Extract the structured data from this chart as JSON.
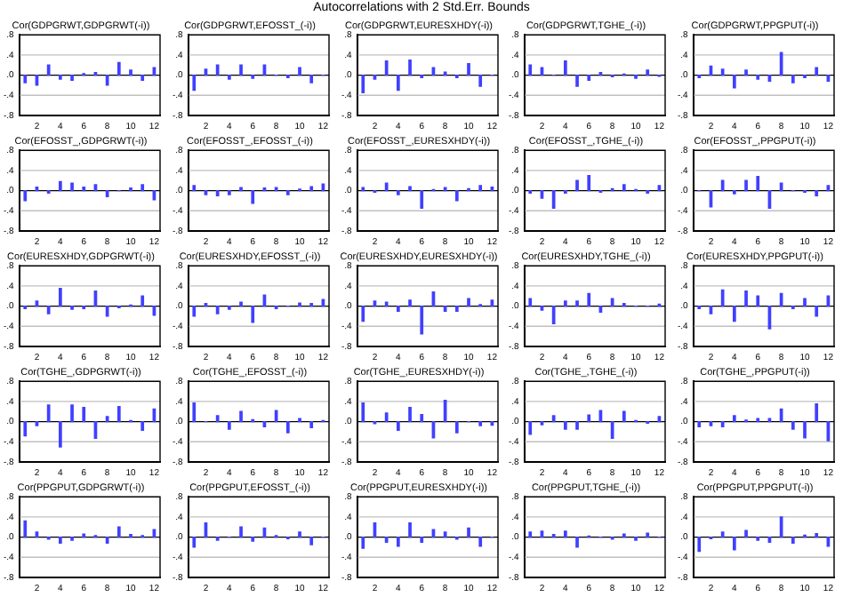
{
  "chart_data": [
    {
      "type": "bar",
      "title": "Cor(GDPGRWT,GDPGRWT(-i))",
      "annotations": [
        "Autocorrelations with 2 Std.Err. Bounds"
      ],
      "x": [
        1,
        2,
        3,
        4,
        5,
        6,
        7,
        8,
        9,
        10,
        11,
        12
      ],
      "values": [
        -0.15,
        -0.2,
        0.2,
        -0.08,
        -0.1,
        0.03,
        0.05,
        -0.2,
        0.25,
        0.1,
        -0.1,
        0.15
      ],
      "color": "#4040ff",
      "xlim": [
        0.5,
        12.5
      ],
      "xticks": [
        2,
        4,
        6,
        8,
        10,
        12
      ],
      "ylim": [
        -0.8,
        0.8
      ],
      "yticks": [
        {
          "value": -0.8,
          "label": "-.8"
        },
        {
          "value": -0.4,
          "label": "-.4"
        },
        {
          "value": 0,
          "label": ".0"
        },
        {
          "value": 0.4,
          "label": ".4"
        },
        {
          "value": 0.8,
          "label": ".8"
        }
      ],
      "ref_lines": [
        {
          "axis": "y",
          "value": 0,
          "color": "#000000"
        },
        {
          "axis": "y",
          "value": 0.4,
          "color": "#c0c0c0"
        },
        {
          "axis": "y",
          "value": -0.4,
          "color": "#c0c0c0"
        }
      ]
    },
    {
      "type": "bar",
      "title": "Cor(GDPGRWT,EFOSST_(-i))",
      "x": [
        1,
        2,
        3,
        4,
        5,
        6,
        7,
        8,
        9,
        10,
        11,
        12
      ],
      "values": [
        -0.3,
        0.12,
        0.2,
        -0.08,
        0.2,
        -0.06,
        0.2,
        0.0,
        -0.05,
        0.15,
        -0.15,
        0.0
      ],
      "color": "#4040ff",
      "xlim": [
        0.5,
        12.5
      ],
      "xticks": [
        2,
        4,
        6,
        8,
        10,
        12
      ],
      "ylim": [
        -0.8,
        0.8
      ],
      "yticks": [
        {
          "value": -0.8,
          "label": "-.8"
        },
        {
          "value": -0.4,
          "label": "-.4"
        },
        {
          "value": 0,
          "label": ".0"
        },
        {
          "value": 0.4,
          "label": ".4"
        },
        {
          "value": 0.8,
          "label": ".8"
        }
      ],
      "ref_lines": [
        {
          "axis": "y",
          "value": 0,
          "color": "#000000"
        },
        {
          "axis": "y",
          "value": 0.4,
          "color": "#c0c0c0"
        },
        {
          "axis": "y",
          "value": -0.4,
          "color": "#c0c0c0"
        }
      ]
    },
    {
      "type": "bar",
      "title": "Cor(GDPGRWT,EURESXHDY(-i))",
      "x": [
        1,
        2,
        3,
        4,
        5,
        6,
        7,
        8,
        9,
        10,
        11,
        12
      ],
      "values": [
        -0.35,
        -0.08,
        0.28,
        -0.3,
        0.3,
        -0.05,
        0.15,
        0.06,
        -0.05,
        0.23,
        -0.22,
        0.0
      ],
      "color": "#4040ff",
      "xlim": [
        0.5,
        12.5
      ],
      "xticks": [
        2,
        4,
        6,
        8,
        10,
        12
      ],
      "ylim": [
        -0.8,
        0.8
      ],
      "yticks": [
        {
          "value": -0.8,
          "label": "-.8"
        },
        {
          "value": -0.4,
          "label": "-.4"
        },
        {
          "value": 0,
          "label": ".0"
        },
        {
          "value": 0.4,
          "label": ".4"
        },
        {
          "value": 0.8,
          "label": ".8"
        }
      ],
      "ref_lines": [
        {
          "axis": "y",
          "value": 0,
          "color": "#000000"
        },
        {
          "axis": "y",
          "value": 0.4,
          "color": "#c0c0c0"
        },
        {
          "axis": "y",
          "value": -0.4,
          "color": "#c0c0c0"
        }
      ]
    },
    {
      "type": "bar",
      "title": "Cor(GDPGRWT,TGHE_(-i))",
      "x": [
        1,
        2,
        3,
        4,
        5,
        6,
        7,
        8,
        9,
        10,
        11,
        12
      ],
      "values": [
        0.2,
        0.15,
        0.0,
        0.28,
        -0.22,
        -0.1,
        0.05,
        -0.03,
        0.02,
        -0.06,
        0.1,
        -0.02
      ],
      "color": "#4040ff",
      "xlim": [
        0.5,
        12.5
      ],
      "xticks": [
        2,
        4,
        6,
        8,
        10,
        12
      ],
      "ylim": [
        -0.8,
        0.8
      ],
      "yticks": [
        {
          "value": -0.8,
          "label": "-.8"
        },
        {
          "value": -0.4,
          "label": "-.4"
        },
        {
          "value": 0,
          "label": ".0"
        },
        {
          "value": 0.4,
          "label": ".4"
        },
        {
          "value": 0.8,
          "label": ".8"
        }
      ],
      "ref_lines": [
        {
          "axis": "y",
          "value": 0,
          "color": "#000000"
        },
        {
          "axis": "y",
          "value": 0.4,
          "color": "#c0c0c0"
        },
        {
          "axis": "y",
          "value": -0.4,
          "color": "#c0c0c0"
        }
      ]
    },
    {
      "type": "bar",
      "title": "Cor(GDPGRWT,PPGPUT(-i))",
      "x": [
        1,
        2,
        3,
        4,
        5,
        6,
        7,
        8,
        9,
        10,
        11,
        12
      ],
      "values": [
        -0.05,
        0.18,
        0.12,
        -0.25,
        0.1,
        -0.08,
        -0.12,
        0.45,
        -0.15,
        -0.05,
        0.15,
        -0.12
      ],
      "color": "#4040ff",
      "xlim": [
        0.5,
        12.5
      ],
      "xticks": [
        2,
        4,
        6,
        8,
        10,
        12
      ],
      "ylim": [
        -0.8,
        0.8
      ],
      "yticks": [
        {
          "value": -0.8,
          "label": "-.8"
        },
        {
          "value": -0.4,
          "label": "-.4"
        },
        {
          "value": 0,
          "label": ".0"
        },
        {
          "value": 0.4,
          "label": ".4"
        },
        {
          "value": 0.8,
          "label": ".8"
        }
      ],
      "ref_lines": [
        {
          "axis": "y",
          "value": 0,
          "color": "#000000"
        },
        {
          "axis": "y",
          "value": 0.4,
          "color": "#c0c0c0"
        },
        {
          "axis": "y",
          "value": -0.4,
          "color": "#c0c0c0"
        }
      ]
    },
    {
      "type": "bar",
      "title": "Cor(EFOSST_,GDPGRWT(-i))",
      "x": [
        1,
        2,
        3,
        4,
        5,
        6,
        7,
        8,
        9,
        10,
        11,
        12
      ],
      "values": [
        -0.2,
        0.07,
        -0.05,
        0.18,
        0.15,
        0.07,
        0.12,
        -0.12,
        0.0,
        0.05,
        0.12,
        -0.18
      ],
      "color": "#4040ff",
      "xlim": [
        0.5,
        12.5
      ],
      "xticks": [
        2,
        4,
        6,
        8,
        10,
        12
      ],
      "ylim": [
        -0.8,
        0.8
      ],
      "yticks": [
        {
          "value": -0.8,
          "label": "-.8"
        },
        {
          "value": -0.4,
          "label": "-.4"
        },
        {
          "value": 0,
          "label": ".0"
        },
        {
          "value": 0.4,
          "label": ".4"
        },
        {
          "value": 0.8,
          "label": ".8"
        }
      ],
      "ref_lines": [
        {
          "axis": "y",
          "value": 0,
          "color": "#000000"
        },
        {
          "axis": "y",
          "value": 0.4,
          "color": "#c0c0c0"
        },
        {
          "axis": "y",
          "value": -0.4,
          "color": "#c0c0c0"
        }
      ]
    },
    {
      "type": "bar",
      "title": "Cor(EFOSST_,EFOSST_(-i))",
      "x": [
        1,
        2,
        3,
        4,
        5,
        6,
        7,
        8,
        9,
        10,
        11,
        12
      ],
      "values": [
        0.1,
        -0.08,
        -0.1,
        -0.08,
        0.06,
        -0.25,
        0.05,
        0.06,
        -0.08,
        0.03,
        0.08,
        0.13
      ],
      "color": "#4040ff",
      "xlim": [
        0.5,
        12.5
      ],
      "xticks": [
        2,
        4,
        6,
        8,
        10,
        12
      ],
      "ylim": [
        -0.8,
        0.8
      ],
      "yticks": [
        {
          "value": -0.8,
          "label": "-.8"
        },
        {
          "value": -0.4,
          "label": "-.4"
        },
        {
          "value": 0,
          "label": ".0"
        },
        {
          "value": 0.4,
          "label": ".4"
        },
        {
          "value": 0.8,
          "label": ".8"
        }
      ],
      "ref_lines": [
        {
          "axis": "y",
          "value": 0,
          "color": "#000000"
        },
        {
          "axis": "y",
          "value": 0.4,
          "color": "#c0c0c0"
        },
        {
          "axis": "y",
          "value": -0.4,
          "color": "#c0c0c0"
        }
      ]
    },
    {
      "type": "bar",
      "title": "Cor(EFOSST_,EURESXHDY(-i))",
      "x": [
        1,
        2,
        3,
        4,
        5,
        6,
        7,
        8,
        9,
        10,
        11,
        12
      ],
      "values": [
        0.06,
        -0.03,
        0.15,
        -0.08,
        0.08,
        -0.35,
        0.02,
        0.06,
        -0.2,
        0.04,
        0.1,
        0.07
      ],
      "color": "#4040ff",
      "xlim": [
        0.5,
        12.5
      ],
      "xticks": [
        2,
        4,
        6,
        8,
        10,
        12
      ],
      "ylim": [
        -0.8,
        0.8
      ],
      "yticks": [
        {
          "value": -0.8,
          "label": "-.8"
        },
        {
          "value": -0.4,
          "label": "-.4"
        },
        {
          "value": 0,
          "label": ".0"
        },
        {
          "value": 0.4,
          "label": ".4"
        },
        {
          "value": 0.8,
          "label": ".8"
        }
      ],
      "ref_lines": [
        {
          "axis": "y",
          "value": 0,
          "color": "#000000"
        },
        {
          "axis": "y",
          "value": 0.4,
          "color": "#c0c0c0"
        },
        {
          "axis": "y",
          "value": -0.4,
          "color": "#c0c0c0"
        }
      ]
    },
    {
      "type": "bar",
      "title": "Cor(EFOSST_,TGHE_(-i))",
      "x": [
        1,
        2,
        3,
        4,
        5,
        6,
        7,
        8,
        9,
        10,
        11,
        12
      ],
      "values": [
        -0.05,
        -0.15,
        -0.35,
        -0.05,
        0.2,
        0.3,
        -0.03,
        0.04,
        0.12,
        0.02,
        -0.05,
        0.1
      ],
      "color": "#4040ff",
      "xlim": [
        0.5,
        12.5
      ],
      "xticks": [
        2,
        4,
        6,
        8,
        10,
        12
      ],
      "ylim": [
        -0.8,
        0.8
      ],
      "yticks": [
        {
          "value": -0.8,
          "label": "-.8"
        },
        {
          "value": -0.4,
          "label": "-.4"
        },
        {
          "value": 0,
          "label": ".0"
        },
        {
          "value": 0.4,
          "label": ".4"
        },
        {
          "value": 0.8,
          "label": ".8"
        }
      ],
      "ref_lines": [
        {
          "axis": "y",
          "value": 0,
          "color": "#000000"
        },
        {
          "axis": "y",
          "value": 0.4,
          "color": "#c0c0c0"
        },
        {
          "axis": "y",
          "value": -0.4,
          "color": "#c0c0c0"
        }
      ]
    },
    {
      "type": "bar",
      "title": "Cor(EFOSST_,PPGPUT(-i))",
      "x": [
        1,
        2,
        3,
        4,
        5,
        6,
        7,
        8,
        9,
        10,
        11,
        12
      ],
      "values": [
        0.0,
        -0.32,
        0.2,
        -0.06,
        0.2,
        0.28,
        -0.35,
        0.15,
        0.0,
        -0.03,
        -0.1,
        0.1
      ],
      "color": "#4040ff",
      "xlim": [
        0.5,
        12.5
      ],
      "xticks": [
        2,
        4,
        6,
        8,
        10,
        12
      ],
      "ylim": [
        -0.8,
        0.8
      ],
      "yticks": [
        {
          "value": -0.8,
          "label": "-.8"
        },
        {
          "value": -0.4,
          "label": "-.4"
        },
        {
          "value": 0,
          "label": ".0"
        },
        {
          "value": 0.4,
          "label": ".4"
        },
        {
          "value": 0.8,
          "label": ".8"
        }
      ],
      "ref_lines": [
        {
          "axis": "y",
          "value": 0,
          "color": "#000000"
        },
        {
          "axis": "y",
          "value": 0.4,
          "color": "#c0c0c0"
        },
        {
          "axis": "y",
          "value": -0.4,
          "color": "#c0c0c0"
        }
      ]
    },
    {
      "type": "bar",
      "title": "Cor(EURESXHDY,GDPGRWT(-i))",
      "x": [
        1,
        2,
        3,
        4,
        5,
        6,
        7,
        8,
        9,
        10,
        11,
        12
      ],
      "values": [
        -0.05,
        0.1,
        -0.15,
        0.35,
        -0.06,
        -0.05,
        0.3,
        -0.2,
        -0.03,
        0.02,
        0.2,
        -0.18
      ],
      "color": "#4040ff",
      "xlim": [
        0.5,
        12.5
      ],
      "xticks": [
        2,
        4,
        6,
        8,
        10,
        12
      ],
      "ylim": [
        -0.8,
        0.8
      ],
      "yticks": [
        {
          "value": -0.8,
          "label": "-.8"
        },
        {
          "value": -0.4,
          "label": "-.4"
        },
        {
          "value": 0,
          "label": ".0"
        },
        {
          "value": 0.4,
          "label": ".4"
        },
        {
          "value": 0.8,
          "label": ".8"
        }
      ],
      "ref_lines": [
        {
          "axis": "y",
          "value": 0,
          "color": "#000000"
        },
        {
          "axis": "y",
          "value": 0.4,
          "color": "#c0c0c0"
        },
        {
          "axis": "y",
          "value": -0.4,
          "color": "#c0c0c0"
        }
      ]
    },
    {
      "type": "bar",
      "title": "Cor(EURESXHDY,EFOSST_(-i))",
      "x": [
        1,
        2,
        3,
        4,
        5,
        6,
        7,
        8,
        9,
        10,
        11,
        12
      ],
      "values": [
        -0.2,
        0.05,
        -0.15,
        -0.06,
        0.08,
        -0.32,
        0.22,
        -0.05,
        0.0,
        0.06,
        0.05,
        0.13
      ],
      "color": "#4040ff",
      "xlim": [
        0.5,
        12.5
      ],
      "xticks": [
        2,
        4,
        6,
        8,
        10,
        12
      ],
      "ylim": [
        -0.8,
        0.8
      ],
      "yticks": [
        {
          "value": -0.8,
          "label": "-.8"
        },
        {
          "value": -0.4,
          "label": "-.4"
        },
        {
          "value": 0,
          "label": ".0"
        },
        {
          "value": 0.4,
          "label": ".4"
        },
        {
          "value": 0.8,
          "label": ".8"
        }
      ],
      "ref_lines": [
        {
          "axis": "y",
          "value": 0,
          "color": "#000000"
        },
        {
          "axis": "y",
          "value": 0.4,
          "color": "#c0c0c0"
        },
        {
          "axis": "y",
          "value": -0.4,
          "color": "#c0c0c0"
        }
      ]
    },
    {
      "type": "bar",
      "title": "Cor(EURESXHDY,EURESXHDY(-i))",
      "x": [
        1,
        2,
        3,
        4,
        5,
        6,
        7,
        8,
        9,
        10,
        11,
        12
      ],
      "values": [
        -0.3,
        0.1,
        0.08,
        -0.1,
        0.12,
        -0.55,
        0.28,
        -0.1,
        -0.1,
        0.15,
        0.03,
        0.12
      ],
      "color": "#4040ff",
      "xlim": [
        0.5,
        12.5
      ],
      "xticks": [
        2,
        4,
        6,
        8,
        10,
        12
      ],
      "ylim": [
        -0.8,
        0.8
      ],
      "yticks": [
        {
          "value": -0.8,
          "label": "-.8"
        },
        {
          "value": -0.4,
          "label": "-.4"
        },
        {
          "value": 0,
          "label": ".0"
        },
        {
          "value": 0.4,
          "label": ".4"
        },
        {
          "value": 0.8,
          "label": ".8"
        }
      ],
      "ref_lines": [
        {
          "axis": "y",
          "value": 0,
          "color": "#000000"
        },
        {
          "axis": "y",
          "value": 0.4,
          "color": "#c0c0c0"
        },
        {
          "axis": "y",
          "value": -0.4,
          "color": "#c0c0c0"
        }
      ]
    },
    {
      "type": "bar",
      "title": "Cor(EURESXHDY,TGHE_(-i))",
      "x": [
        1,
        2,
        3,
        4,
        5,
        6,
        7,
        8,
        9,
        10,
        11,
        12
      ],
      "values": [
        0.15,
        -0.08,
        -0.35,
        0.1,
        0.1,
        0.25,
        -0.12,
        0.15,
        0.05,
        0.0,
        0.0,
        0.04
      ],
      "color": "#4040ff",
      "xlim": [
        0.5,
        12.5
      ],
      "xticks": [
        2,
        4,
        6,
        8,
        10,
        12
      ],
      "ylim": [
        -0.8,
        0.8
      ],
      "yticks": [
        {
          "value": -0.8,
          "label": "-.8"
        },
        {
          "value": -0.4,
          "label": "-.4"
        },
        {
          "value": 0,
          "label": ".0"
        },
        {
          "value": 0.4,
          "label": ".4"
        },
        {
          "value": 0.8,
          "label": ".8"
        }
      ],
      "ref_lines": [
        {
          "axis": "y",
          "value": 0,
          "color": "#000000"
        },
        {
          "axis": "y",
          "value": 0.4,
          "color": "#c0c0c0"
        },
        {
          "axis": "y",
          "value": -0.4,
          "color": "#c0c0c0"
        }
      ]
    },
    {
      "type": "bar",
      "title": "Cor(EURESXHDY,PPGPUT(-i))",
      "x": [
        1,
        2,
        3,
        4,
        5,
        6,
        7,
        8,
        9,
        10,
        11,
        12
      ],
      "values": [
        -0.05,
        -0.15,
        0.32,
        -0.3,
        0.3,
        0.2,
        -0.45,
        0.25,
        -0.05,
        0.15,
        -0.2,
        0.2
      ],
      "color": "#4040ff",
      "xlim": [
        0.5,
        12.5
      ],
      "xticks": [
        2,
        4,
        6,
        8,
        10,
        12
      ],
      "ylim": [
        -0.8,
        0.8
      ],
      "yticks": [
        {
          "value": -0.8,
          "label": "-.8"
        },
        {
          "value": -0.4,
          "label": "-.4"
        },
        {
          "value": 0,
          "label": ".0"
        },
        {
          "value": 0.4,
          "label": ".4"
        },
        {
          "value": 0.8,
          "label": ".8"
        }
      ],
      "ref_lines": [
        {
          "axis": "y",
          "value": 0,
          "color": "#000000"
        },
        {
          "axis": "y",
          "value": 0.4,
          "color": "#c0c0c0"
        },
        {
          "axis": "y",
          "value": -0.4,
          "color": "#c0c0c0"
        }
      ]
    },
    {
      "type": "bar",
      "title": "Cor(TGHE_,GDPGRWT(-i))",
      "x": [
        1,
        2,
        3,
        4,
        5,
        6,
        7,
        8,
        9,
        10,
        11,
        12
      ],
      "values": [
        -0.28,
        -0.08,
        0.33,
        -0.5,
        0.33,
        0.28,
        -0.33,
        0.1,
        0.3,
        0.02,
        -0.17,
        0.25
      ],
      "color": "#4040ff",
      "xlim": [
        0.5,
        12.5
      ],
      "xticks": [
        2,
        4,
        6,
        8,
        10,
        12
      ],
      "ylim": [
        -0.8,
        0.8
      ],
      "yticks": [
        {
          "value": -0.8,
          "label": "-.8"
        },
        {
          "value": -0.4,
          "label": "-.4"
        },
        {
          "value": 0,
          "label": ".0"
        },
        {
          "value": 0.4,
          "label": ".4"
        },
        {
          "value": 0.8,
          "label": ".8"
        }
      ],
      "ref_lines": [
        {
          "axis": "y",
          "value": 0,
          "color": "#000000"
        },
        {
          "axis": "y",
          "value": 0.4,
          "color": "#c0c0c0"
        },
        {
          "axis": "y",
          "value": -0.4,
          "color": "#c0c0c0"
        }
      ]
    },
    {
      "type": "bar",
      "title": "Cor(TGHE_,EFOSST_(-i))",
      "x": [
        1,
        2,
        3,
        4,
        5,
        6,
        7,
        8,
        9,
        10,
        11,
        12
      ],
      "values": [
        0.37,
        0.0,
        0.12,
        -0.15,
        0.2,
        0.04,
        -0.1,
        0.22,
        -0.22,
        0.06,
        -0.12,
        0.02
      ],
      "color": "#4040ff",
      "xlim": [
        0.5,
        12.5
      ],
      "xticks": [
        2,
        4,
        6,
        8,
        10,
        12
      ],
      "ylim": [
        -0.8,
        0.8
      ],
      "yticks": [
        {
          "value": -0.8,
          "label": "-.8"
        },
        {
          "value": -0.4,
          "label": "-.4"
        },
        {
          "value": 0,
          "label": ".0"
        },
        {
          "value": 0.4,
          "label": ".4"
        },
        {
          "value": 0.8,
          "label": ".8"
        }
      ],
      "ref_lines": [
        {
          "axis": "y",
          "value": 0,
          "color": "#000000"
        },
        {
          "axis": "y",
          "value": 0.4,
          "color": "#c0c0c0"
        },
        {
          "axis": "y",
          "value": -0.4,
          "color": "#c0c0c0"
        }
      ]
    },
    {
      "type": "bar",
      "title": "Cor(TGHE_,EURESXHDY(-i))",
      "x": [
        1,
        2,
        3,
        4,
        5,
        6,
        7,
        8,
        9,
        10,
        11,
        12
      ],
      "values": [
        0.37,
        -0.04,
        0.17,
        -0.17,
        0.28,
        0.14,
        -0.32,
        0.42,
        -0.22,
        0.0,
        -0.08,
        -0.07
      ],
      "color": "#4040ff",
      "xlim": [
        0.5,
        12.5
      ],
      "xticks": [
        2,
        4,
        6,
        8,
        10,
        12
      ],
      "ylim": [
        -0.8,
        0.8
      ],
      "yticks": [
        {
          "value": -0.8,
          "label": "-.8"
        },
        {
          "value": -0.4,
          "label": "-.4"
        },
        {
          "value": 0,
          "label": ".0"
        },
        {
          "value": 0.4,
          "label": ".4"
        },
        {
          "value": 0.8,
          "label": ".8"
        }
      ],
      "ref_lines": [
        {
          "axis": "y",
          "value": 0,
          "color": "#000000"
        },
        {
          "axis": "y",
          "value": 0.4,
          "color": "#c0c0c0"
        },
        {
          "axis": "y",
          "value": -0.4,
          "color": "#c0c0c0"
        }
      ]
    },
    {
      "type": "bar",
      "title": "Cor(TGHE_,TGHE_(-i))",
      "x": [
        1,
        2,
        3,
        4,
        5,
        6,
        7,
        8,
        9,
        10,
        11,
        12
      ],
      "values": [
        -0.25,
        -0.06,
        0.12,
        -0.15,
        -0.15,
        0.13,
        0.22,
        -0.33,
        0.2,
        0.02,
        -0.03,
        0.1
      ],
      "color": "#4040ff",
      "xlim": [
        0.5,
        12.5
      ],
      "xticks": [
        2,
        4,
        6,
        8,
        10,
        12
      ],
      "ylim": [
        -0.8,
        0.8
      ],
      "yticks": [
        {
          "value": -0.8,
          "label": "-.8"
        },
        {
          "value": -0.4,
          "label": "-.4"
        },
        {
          "value": 0,
          "label": ".0"
        },
        {
          "value": 0.4,
          "label": ".4"
        },
        {
          "value": 0.8,
          "label": ".8"
        }
      ],
      "ref_lines": [
        {
          "axis": "y",
          "value": 0,
          "color": "#000000"
        },
        {
          "axis": "y",
          "value": 0.4,
          "color": "#c0c0c0"
        },
        {
          "axis": "y",
          "value": -0.4,
          "color": "#c0c0c0"
        }
      ]
    },
    {
      "type": "bar",
      "title": "Cor(TGHE_,PPGPUT(-i))",
      "x": [
        1,
        2,
        3,
        4,
        5,
        6,
        7,
        8,
        9,
        10,
        11,
        12
      ],
      "values": [
        -0.1,
        -0.08,
        -0.1,
        0.12,
        0.03,
        0.06,
        0.06,
        0.25,
        -0.15,
        -0.32,
        0.35,
        -0.38
      ],
      "color": "#4040ff",
      "xlim": [
        0.5,
        12.5
      ],
      "xticks": [
        2,
        4,
        6,
        8,
        10,
        12
      ],
      "ylim": [
        -0.8,
        0.8
      ],
      "yticks": [
        {
          "value": -0.8,
          "label": "-.8"
        },
        {
          "value": -0.4,
          "label": "-.4"
        },
        {
          "value": 0,
          "label": ".0"
        },
        {
          "value": 0.4,
          "label": ".4"
        },
        {
          "value": 0.8,
          "label": ".8"
        }
      ],
      "ref_lines": [
        {
          "axis": "y",
          "value": 0,
          "color": "#000000"
        },
        {
          "axis": "y",
          "value": 0.4,
          "color": "#c0c0c0"
        },
        {
          "axis": "y",
          "value": -0.4,
          "color": "#c0c0c0"
        }
      ]
    },
    {
      "type": "bar",
      "title": "Cor(PPGPUT,GDPGRWT(-i))",
      "x": [
        1,
        2,
        3,
        4,
        5,
        6,
        7,
        8,
        9,
        10,
        11,
        12
      ],
      "values": [
        0.32,
        0.1,
        -0.04,
        -0.12,
        -0.06,
        0.06,
        0.03,
        -0.12,
        0.2,
        0.05,
        0.03,
        0.15
      ],
      "color": "#4040ff",
      "xlim": [
        0.5,
        12.5
      ],
      "xticks": [
        2,
        4,
        6,
        8,
        10,
        12
      ],
      "ylim": [
        -0.8,
        0.8
      ],
      "yticks": [
        {
          "value": -0.8,
          "label": "-.8"
        },
        {
          "value": -0.4,
          "label": "-.4"
        },
        {
          "value": 0,
          "label": ".0"
        },
        {
          "value": 0.4,
          "label": ".4"
        },
        {
          "value": 0.8,
          "label": ".8"
        }
      ],
      "ref_lines": [
        {
          "axis": "y",
          "value": 0,
          "color": "#000000"
        },
        {
          "axis": "y",
          "value": 0.4,
          "color": "#c0c0c0"
        },
        {
          "axis": "y",
          "value": -0.4,
          "color": "#c0c0c0"
        }
      ]
    },
    {
      "type": "bar",
      "title": "Cor(PPGPUT,EFOSST_(-i))",
      "x": [
        1,
        2,
        3,
        4,
        5,
        6,
        7,
        8,
        9,
        10,
        11,
        12
      ],
      "values": [
        -0.2,
        0.28,
        -0.06,
        0.0,
        0.2,
        -0.08,
        0.18,
        0.03,
        -0.03,
        0.1,
        -0.15,
        0.0
      ],
      "color": "#4040ff",
      "xlim": [
        0.5,
        12.5
      ],
      "xticks": [
        2,
        4,
        6,
        8,
        10,
        12
      ],
      "ylim": [
        -0.8,
        0.8
      ],
      "yticks": [
        {
          "value": -0.8,
          "label": "-.8"
        },
        {
          "value": -0.4,
          "label": "-.4"
        },
        {
          "value": 0,
          "label": ".0"
        },
        {
          "value": 0.4,
          "label": ".4"
        },
        {
          "value": 0.8,
          "label": ".8"
        }
      ],
      "ref_lines": [
        {
          "axis": "y",
          "value": 0,
          "color": "#000000"
        },
        {
          "axis": "y",
          "value": 0.4,
          "color": "#c0c0c0"
        },
        {
          "axis": "y",
          "value": -0.4,
          "color": "#c0c0c0"
        }
      ]
    },
    {
      "type": "bar",
      "title": "Cor(PPGPUT,EURESXHDY(-i))",
      "x": [
        1,
        2,
        3,
        4,
        5,
        6,
        7,
        8,
        9,
        10,
        11,
        12
      ],
      "values": [
        -0.22,
        0.28,
        -0.1,
        -0.18,
        0.28,
        -0.1,
        0.15,
        0.1,
        -0.04,
        0.18,
        -0.18,
        0.0
      ],
      "color": "#4040ff",
      "xlim": [
        0.5,
        12.5
      ],
      "xticks": [
        2,
        4,
        6,
        8,
        10,
        12
      ],
      "ylim": [
        -0.8,
        0.8
      ],
      "yticks": [
        {
          "value": -0.8,
          "label": "-.8"
        },
        {
          "value": -0.4,
          "label": "-.4"
        },
        {
          "value": 0,
          "label": ".0"
        },
        {
          "value": 0.4,
          "label": ".4"
        },
        {
          "value": 0.8,
          "label": ".8"
        }
      ],
      "ref_lines": [
        {
          "axis": "y",
          "value": 0,
          "color": "#000000"
        },
        {
          "axis": "y",
          "value": 0.4,
          "color": "#c0c0c0"
        },
        {
          "axis": "y",
          "value": -0.4,
          "color": "#c0c0c0"
        }
      ]
    },
    {
      "type": "bar",
      "title": "Cor(PPGPUT,TGHE_(-i))",
      "x": [
        1,
        2,
        3,
        4,
        5,
        6,
        7,
        8,
        9,
        10,
        11,
        12
      ],
      "values": [
        0.1,
        0.12,
        0.05,
        0.12,
        -0.2,
        0.02,
        0.0,
        -0.04,
        0.06,
        -0.06,
        0.08,
        0.0
      ],
      "color": "#4040ff",
      "xlim": [
        0.5,
        12.5
      ],
      "xticks": [
        2,
        4,
        6,
        8,
        10,
        12
      ],
      "ylim": [
        -0.8,
        0.8
      ],
      "yticks": [
        {
          "value": -0.8,
          "label": "-.8"
        },
        {
          "value": -0.4,
          "label": "-.4"
        },
        {
          "value": 0,
          "label": ".0"
        },
        {
          "value": 0.4,
          "label": ".4"
        },
        {
          "value": 0.8,
          "label": ".8"
        }
      ],
      "ref_lines": [
        {
          "axis": "y",
          "value": 0,
          "color": "#000000"
        },
        {
          "axis": "y",
          "value": 0.4,
          "color": "#c0c0c0"
        },
        {
          "axis": "y",
          "value": -0.4,
          "color": "#c0c0c0"
        }
      ]
    },
    {
      "type": "bar",
      "title": "Cor(PPGPUT,PPGPUT(-i))",
      "x": [
        1,
        2,
        3,
        4,
        5,
        6,
        7,
        8,
        9,
        10,
        11,
        12
      ],
      "values": [
        -0.28,
        -0.03,
        0.1,
        -0.25,
        0.13,
        -0.06,
        -0.1,
        0.4,
        -0.12,
        0.04,
        0.07,
        -0.18
      ],
      "color": "#4040ff",
      "xlim": [
        0.5,
        12.5
      ],
      "xticks": [
        2,
        4,
        6,
        8,
        10,
        12
      ],
      "ylim": [
        -0.8,
        0.8
      ],
      "yticks": [
        {
          "value": -0.8,
          "label": "-.8"
        },
        {
          "value": -0.4,
          "label": "-.4"
        },
        {
          "value": 0,
          "label": ".0"
        },
        {
          "value": 0.4,
          "label": ".4"
        },
        {
          "value": 0.8,
          "label": ".8"
        }
      ],
      "ref_lines": [
        {
          "axis": "y",
          "value": 0,
          "color": "#000000"
        },
        {
          "axis": "y",
          "value": 0.4,
          "color": "#c0c0c0"
        },
        {
          "axis": "y",
          "value": -0.4,
          "color": "#c0c0c0"
        }
      ]
    }
  ]
}
